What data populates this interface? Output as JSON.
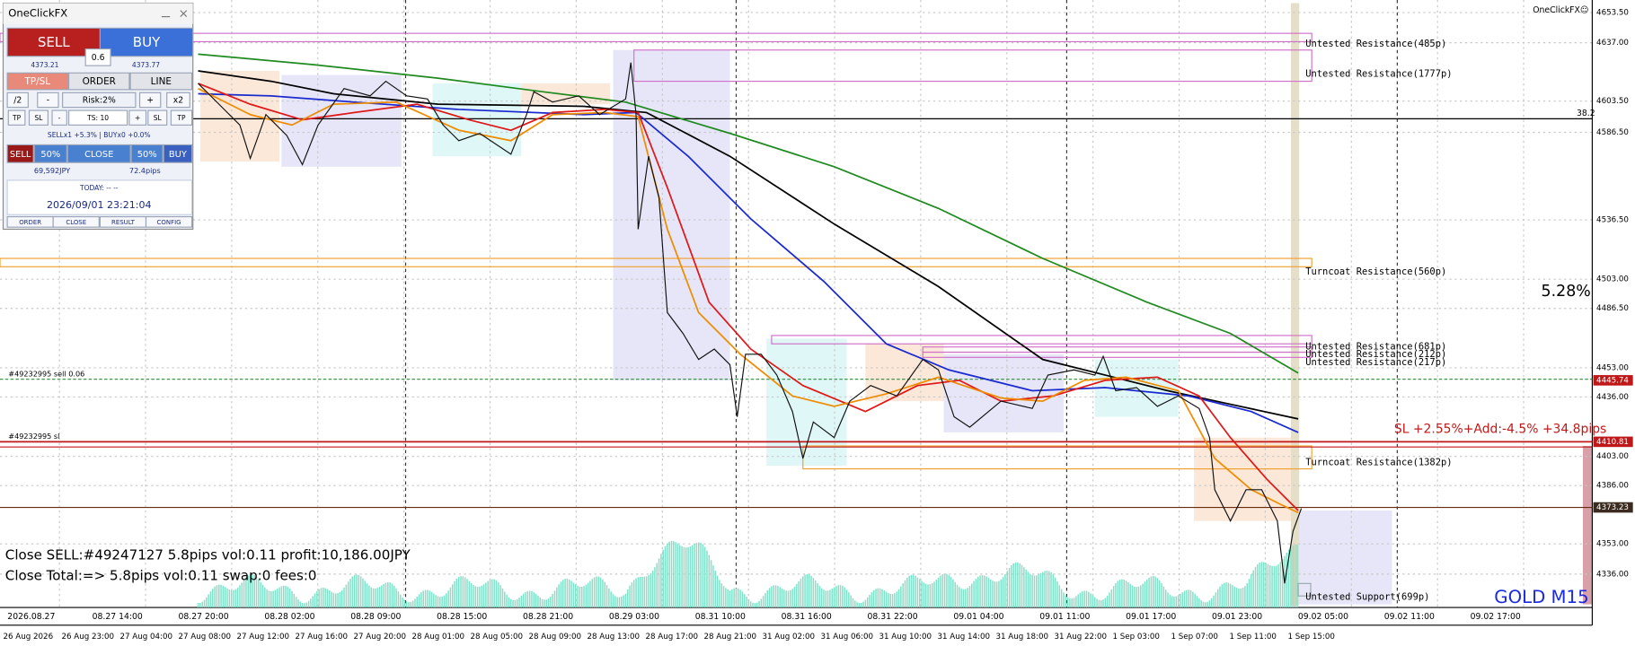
{
  "panel": {
    "title": "OneClickFX",
    "sell": "SELL",
    "buy": "BUY",
    "lot": "0.6",
    "bid": "4373.21",
    "ask": "4373.77",
    "tabs": [
      "TP/SL",
      "ORDER",
      "LINE"
    ],
    "risk_row": [
      "/2",
      "-",
      "Risk:2%",
      "+",
      "x2"
    ],
    "ts_row": [
      "TP",
      "SL",
      "-",
      "TS: 10",
      "+",
      "SL",
      "TP"
    ],
    "position": "SELLx1 +5.3% | BUYx0 +0.0%",
    "close_row": [
      "SELL",
      "50%",
      "CLOSE",
      "50%",
      "BUY"
    ],
    "profit": "69,592JPY",
    "pips": "72.4pips",
    "today": "TODAY: -- --",
    "clock": "2026/09/01  23:21:04",
    "footer": [
      "ORDER",
      "CLOSE",
      "RESULT",
      "CONFIG"
    ]
  },
  "chart": {
    "brand": "OneClickFX☺",
    "fib": "38.2",
    "zones": [
      "Untested Resistance(485p)",
      "Untested Resistance(1777p)",
      "Turncoat Resistance(560p)",
      "Untested Resistance(681p)",
      "Untested Resistance(212p)",
      "Untested Resistance(217p)",
      "Turncoat Resistance(1382p)",
      "Untested Support(699p)"
    ],
    "percent": "5.28%",
    "order_line": "#49232995 sell 0.06",
    "sl_line": "#49232995 sl",
    "sl_info": "SL +2.55%+Add:-4.5% +34.8pips",
    "messages": [
      "Close SELL:#49247127 5.8pips vol:0.11 profit:10,186.00JPY",
      "Close Total:=> 5.8pips vol:0.11 swap:0 fees:0"
    ],
    "symbol": "GOLD M15",
    "separators": [
      "2026.08.27",
      "08.27 14:00",
      "08.27 20:00",
      "08.28 02:00",
      "08.28 09:00",
      "08.28 15:00",
      "08.28 21:00",
      "08.29 03:00",
      "08.31 10:00",
      "08.31 16:00",
      "08.31 22:00",
      "09.01 04:00",
      "09.01 11:00",
      "09.01 17:00",
      "09.01 23:00",
      "09.02 05:00",
      "09.02 11:00",
      "09.02 17:00"
    ]
  },
  "price_axis": [
    "4653.50",
    "4637.00",
    "4603.50",
    "4586.50",
    "4536.50",
    "4503.00",
    "4486.50",
    "4453.00",
    "4436.00",
    "4403.00",
    "4386.00",
    "4353.00",
    "4336.00"
  ],
  "price_marks": [
    "4445.74",
    "4410.81",
    "4373.23"
  ],
  "time_axis": [
    "26 Aug 2026",
    "26 Aug 23:00",
    "27 Aug 04:00",
    "27 Aug 08:00",
    "27 Aug 12:00",
    "27 Aug 16:00",
    "27 Aug 20:00",
    "28 Aug 01:00",
    "28 Aug 05:00",
    "28 Aug 09:00",
    "28 Aug 13:00",
    "28 Aug 17:00",
    "28 Aug 21:00",
    "31 Aug 02:00",
    "31 Aug 06:00",
    "31 Aug 10:00",
    "31 Aug 14:00",
    "31 Aug 18:00",
    "31 Aug 22:00",
    "1 Sep 03:00",
    "1 Sep 07:00",
    "1 Sep 11:00",
    "1 Sep 15:00"
  ]
}
